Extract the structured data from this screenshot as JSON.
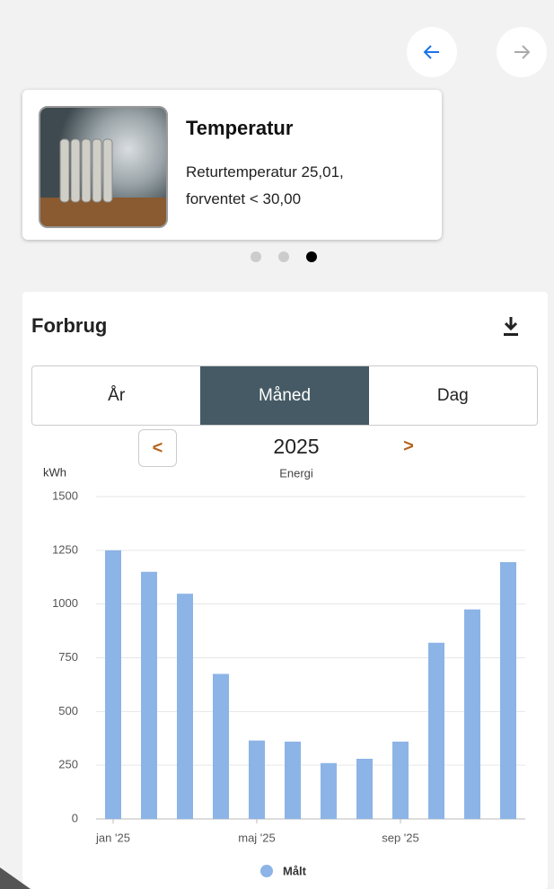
{
  "card": {
    "title": "Temperatur",
    "lines": [
      "Returtemperatur 25,01,",
      "forventet < 30,00"
    ]
  },
  "section": {
    "title": "Forbrug"
  },
  "tabs": [
    "År",
    "Måned",
    "Dag"
  ],
  "year_selector": {
    "prev": "<",
    "year": "2025",
    "next": ">"
  },
  "chart_data": {
    "type": "bar",
    "title": "Energi",
    "ylabel": "kWh",
    "categories": [
      "jan '25",
      null,
      null,
      null,
      "maj '25",
      null,
      null,
      null,
      "sep '25",
      null,
      null,
      null
    ],
    "series": [
      {
        "name": "Målt",
        "color": "#8cb4e6",
        "values": [
          1250,
          1150,
          1048,
          675,
          365,
          360,
          260,
          280,
          360,
          820,
          975,
          1195
        ]
      }
    ],
    "ylim": [
      0,
      1500
    ],
    "yticks": [
      0,
      250,
      500,
      750,
      1000,
      1250,
      1500
    ],
    "grid": true
  }
}
